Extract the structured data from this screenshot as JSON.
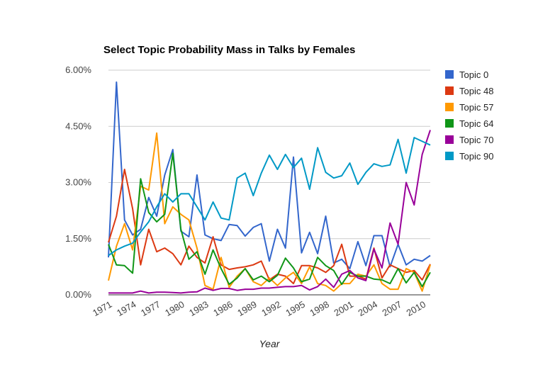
{
  "chart_data": {
    "type": "line",
    "title": "Select Topic Probability Mass in Talks by Females",
    "xlabel": "Year",
    "ylabel": "",
    "x": [
      1971,
      1972,
      1973,
      1974,
      1975,
      1976,
      1977,
      1978,
      1979,
      1980,
      1981,
      1982,
      1983,
      1984,
      1985,
      1986,
      1987,
      1988,
      1989,
      1990,
      1991,
      1992,
      1993,
      1994,
      1995,
      1996,
      1997,
      1998,
      1999,
      2000,
      2001,
      2002,
      2003,
      2004,
      2005,
      2006,
      2007,
      2008,
      2009,
      2010,
      2011
    ],
    "xticks": [
      "1971",
      "1974",
      "1977",
      "1980",
      "1983",
      "1986",
      "1989",
      "1992",
      "1995",
      "1998",
      "2001",
      "2004",
      "2007",
      "2010"
    ],
    "xtick_values": [
      1971,
      1974,
      1977,
      1980,
      1983,
      1986,
      1989,
      1992,
      1995,
      1998,
      2001,
      2004,
      2007,
      2010
    ],
    "xlim": [
      1971,
      2011
    ],
    "ylim": [
      0,
      6
    ],
    "yticks": [
      "0.00%",
      "1.50%",
      "3.00%",
      "4.50%",
      "6.00%"
    ],
    "ytick_values": [
      0,
      1.5,
      3,
      4.5,
      6
    ],
    "grid": true,
    "legend": "right",
    "series": [
      {
        "name": "Topic 0",
        "color": "#3366cc",
        "values": [
          1.0,
          5.68,
          2.0,
          1.6,
          1.75,
          2.6,
          2.1,
          3.2,
          3.88,
          1.7,
          1.55,
          3.2,
          1.6,
          1.5,
          1.45,
          1.88,
          1.85,
          1.57,
          1.8,
          1.9,
          0.9,
          1.75,
          1.25,
          3.68,
          1.12,
          1.67,
          1.1,
          2.1,
          0.85,
          0.95,
          0.7,
          1.42,
          0.78,
          1.58,
          1.58,
          0.75,
          1.35,
          0.8,
          0.95,
          0.9,
          1.05
        ]
      },
      {
        "name": "Topic 48",
        "color": "#dc3912",
        "values": [
          1.4,
          2.1,
          3.35,
          2.3,
          0.8,
          1.75,
          1.15,
          1.25,
          1.1,
          0.8,
          1.3,
          1.0,
          0.85,
          1.55,
          0.8,
          0.68,
          0.72,
          0.75,
          0.8,
          0.9,
          0.4,
          0.55,
          0.5,
          0.3,
          0.78,
          0.78,
          0.72,
          0.6,
          0.78,
          1.35,
          0.5,
          0.5,
          0.42,
          1.25,
          0.45,
          0.8,
          0.7,
          0.6,
          0.65,
          0.4,
          0.82
        ]
      },
      {
        "name": "Topic 57",
        "color": "#ff9900",
        "values": [
          0.38,
          1.3,
          1.9,
          1.2,
          2.9,
          2.8,
          4.32,
          1.9,
          2.35,
          2.15,
          2.0,
          1.25,
          0.25,
          0.15,
          1.0,
          0.2,
          0.5,
          0.7,
          0.35,
          0.25,
          0.45,
          0.25,
          0.45,
          0.6,
          0.3,
          0.75,
          0.3,
          0.25,
          0.1,
          0.3,
          0.3,
          0.55,
          0.5,
          0.8,
          0.3,
          0.15,
          0.15,
          0.7,
          0.6,
          0.1,
          0.8
        ]
      },
      {
        "name": "Topic 64",
        "color": "#109618",
        "values": [
          1.35,
          0.8,
          0.78,
          0.58,
          3.1,
          2.2,
          1.95,
          2.15,
          3.78,
          1.75,
          0.95,
          1.15,
          0.55,
          1.2,
          0.7,
          0.28,
          0.45,
          0.7,
          0.4,
          0.5,
          0.35,
          0.52,
          0.98,
          0.72,
          0.35,
          0.42,
          1.0,
          0.78,
          0.65,
          0.28,
          0.6,
          0.5,
          0.5,
          0.42,
          0.4,
          0.3,
          0.7,
          0.32,
          0.6,
          0.22,
          0.6
        ]
      },
      {
        "name": "Topic 70",
        "color": "#990099",
        "values": [
          0.05,
          0.05,
          0.05,
          0.05,
          0.1,
          0.05,
          0.07,
          0.07,
          0.06,
          0.05,
          0.07,
          0.08,
          0.18,
          0.12,
          0.17,
          0.17,
          0.12,
          0.15,
          0.15,
          0.18,
          0.18,
          0.2,
          0.22,
          0.22,
          0.25,
          0.13,
          0.22,
          0.42,
          0.2,
          0.55,
          0.65,
          0.45,
          0.38,
          1.22,
          0.72,
          1.92,
          1.35,
          3.0,
          2.4,
          3.75,
          4.4
        ]
      },
      {
        "name": "Topic 90",
        "color": "#0099c6",
        "values": [
          1.05,
          1.2,
          1.3,
          1.38,
          1.68,
          1.95,
          2.35,
          2.7,
          2.48,
          2.7,
          2.7,
          2.35,
          2.0,
          2.48,
          2.05,
          2.0,
          3.12,
          3.25,
          2.65,
          3.25,
          3.73,
          3.35,
          3.75,
          3.4,
          3.65,
          2.82,
          3.93,
          3.27,
          3.12,
          3.18,
          3.52,
          2.95,
          3.27,
          3.5,
          3.43,
          3.47,
          4.15,
          3.25,
          4.2,
          4.1,
          4.0
        ]
      }
    ]
  }
}
